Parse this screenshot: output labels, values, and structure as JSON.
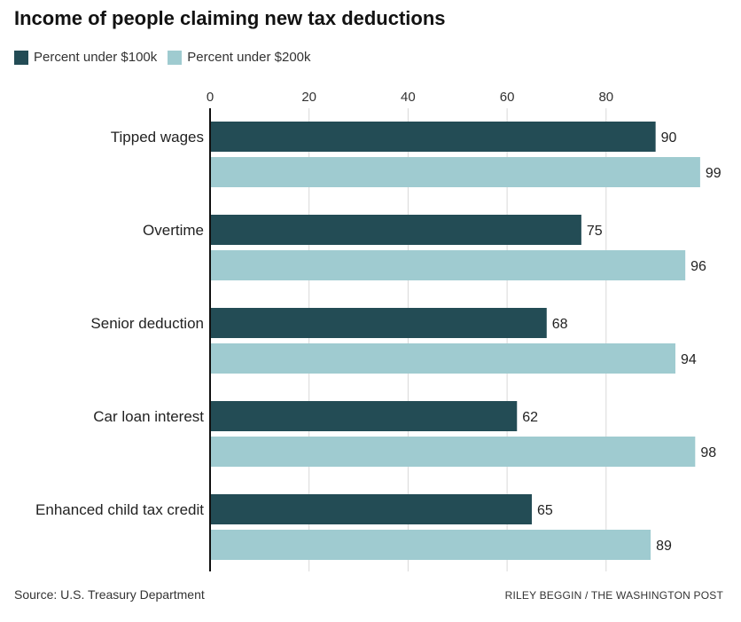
{
  "chart_data": {
    "type": "bar",
    "orientation": "horizontal",
    "title": "Income of people claiming new tax deductions",
    "categories": [
      "Tipped wages",
      "Overtime",
      "Senior deduction",
      "Car loan interest",
      "Enhanced child tax credit"
    ],
    "series": [
      {
        "name": "Percent under $100k",
        "color": "#234c55",
        "values": [
          90,
          75,
          68,
          62,
          65
        ]
      },
      {
        "name": "Percent under $200k",
        "color": "#9fcbd0",
        "values": [
          99,
          96,
          94,
          98,
          89
        ]
      }
    ],
    "xlim": [
      0,
      100
    ],
    "xticks": [
      0,
      20,
      40,
      60,
      80
    ],
    "grid": true,
    "legend_position": "top-left",
    "data_labels": true
  },
  "footer": {
    "source": "Source: U.S. Treasury Department",
    "credit": "RILEY BEGGIN / THE WASHINGTON POST"
  }
}
